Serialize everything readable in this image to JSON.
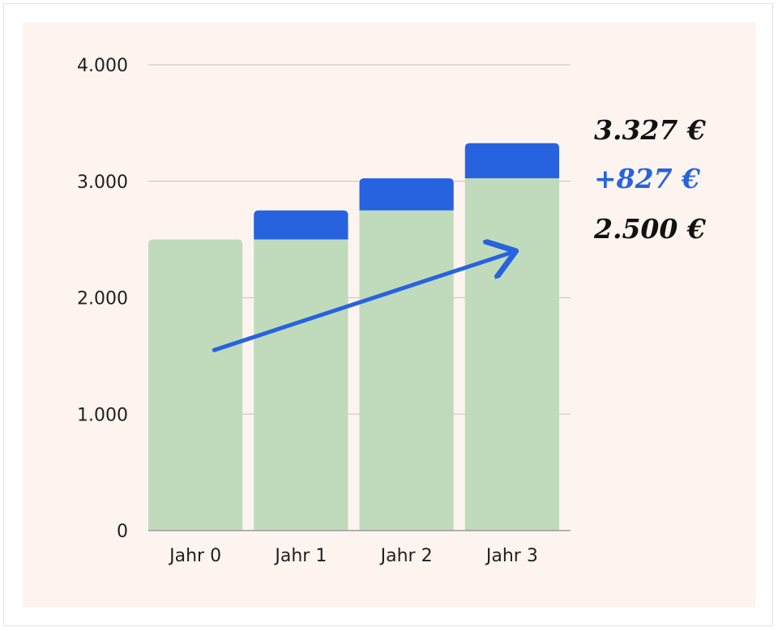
{
  "chart_data": {
    "type": "bar",
    "stacked": true,
    "categories": [
      "Jahr 0",
      "Jahr 1",
      "Jahr 2",
      "Jahr 3"
    ],
    "series": [
      {
        "values": [
          2500,
          2500,
          2750,
          3025
        ],
        "color": "#c0dbbc"
      },
      {
        "values": [
          0,
          250,
          275,
          302
        ],
        "color": "#2763de"
      }
    ],
    "y_ticks": [
      "4.000",
      "3.000",
      "2.000",
      "1.000",
      "0"
    ],
    "ylim": [
      0,
      4000
    ],
    "grid": true,
    "trend_arrow_color": "#2763de",
    "annotations": [
      {
        "text": "3.327 €",
        "color": "#111111"
      },
      {
        "text": "+827 €",
        "color": "#2763de"
      },
      {
        "text": "2.500 €",
        "color": "#111111"
      }
    ]
  }
}
